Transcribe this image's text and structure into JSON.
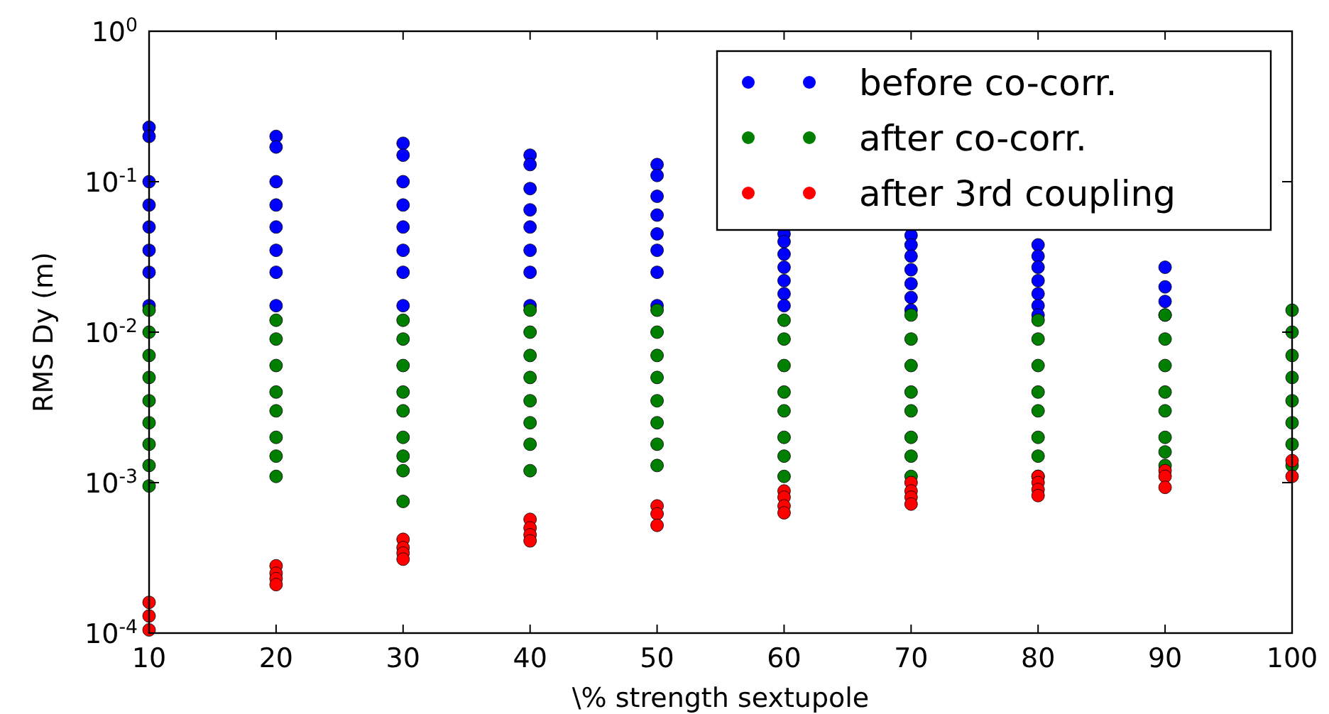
{
  "chart_data": {
    "type": "scatter",
    "xlabel": "\\% strength sextupole",
    "ylabel": "RMS Dy (m)",
    "log": "y",
    "grid": false,
    "legend": "top right",
    "marker": "circle",
    "xlim": [
      10,
      100
    ],
    "xticks": [
      10,
      20,
      30,
      40,
      50,
      60,
      70,
      80,
      90,
      100
    ],
    "ylim": [
      0.0001,
      1
    ],
    "yticks": [
      {
        "value": 0.0001,
        "label": "10$^{-4}$"
      },
      {
        "value": 0.001,
        "label": "10$^{-3}$"
      },
      {
        "value": 0.01,
        "label": "10$^{-2}$"
      },
      {
        "value": 0.1,
        "label": "10$^{-1}$"
      },
      {
        "value": 1,
        "label": "10$^{0}$"
      }
    ],
    "series": [
      {
        "name": "before co-corr.",
        "color": "#0000ff",
        "x": [
          10,
          10,
          10,
          10,
          10,
          10,
          10,
          10,
          20,
          20,
          20,
          20,
          20,
          20,
          20,
          20,
          30,
          30,
          30,
          30,
          30,
          30,
          30,
          30,
          40,
          40,
          40,
          40,
          40,
          40,
          40,
          40,
          50,
          50,
          50,
          50,
          50,
          50,
          50,
          50,
          60,
          60,
          60,
          60,
          60,
          60,
          60,
          70,
          70,
          70,
          70,
          70,
          70,
          70,
          80,
          80,
          80,
          80,
          80,
          80,
          80,
          90,
          90,
          90,
          90
        ],
        "values": [
          0.23,
          0.2,
          0.1,
          0.07,
          0.05,
          0.035,
          0.025,
          0.015,
          0.2,
          0.17,
          0.1,
          0.07,
          0.05,
          0.035,
          0.025,
          0.015,
          0.18,
          0.15,
          0.1,
          0.07,
          0.05,
          0.035,
          0.025,
          0.015,
          0.15,
          0.13,
          0.09,
          0.065,
          0.05,
          0.035,
          0.025,
          0.015,
          0.13,
          0.11,
          0.08,
          0.06,
          0.045,
          0.035,
          0.025,
          0.015,
          0.045,
          0.04,
          0.033,
          0.027,
          0.022,
          0.018,
          0.015,
          0.044,
          0.038,
          0.032,
          0.026,
          0.021,
          0.017,
          0.014,
          0.038,
          0.032,
          0.027,
          0.022,
          0.018,
          0.015,
          0.013,
          0.027,
          0.02,
          0.016,
          0.013
        ]
      },
      {
        "name": "after co-corr.",
        "color": "#007f00",
        "x": [
          10,
          10,
          10,
          10,
          10,
          10,
          10,
          10,
          10,
          20,
          20,
          20,
          20,
          20,
          20,
          20,
          20,
          30,
          30,
          30,
          30,
          30,
          30,
          30,
          30,
          30,
          40,
          40,
          40,
          40,
          40,
          40,
          40,
          40,
          50,
          50,
          50,
          50,
          50,
          50,
          50,
          50,
          60,
          60,
          60,
          60,
          60,
          60,
          60,
          60,
          70,
          70,
          70,
          70,
          70,
          70,
          70,
          70,
          80,
          80,
          80,
          80,
          80,
          80,
          80,
          80,
          90,
          90,
          90,
          90,
          90,
          90,
          90,
          90,
          100,
          100,
          100,
          100,
          100,
          100,
          100,
          100
        ],
        "values": [
          0.014,
          0.01,
          0.007,
          0.005,
          0.0035,
          0.0025,
          0.0018,
          0.0013,
          0.00095,
          0.012,
          0.009,
          0.006,
          0.004,
          0.003,
          0.002,
          0.0015,
          0.0011,
          0.012,
          0.009,
          0.006,
          0.004,
          0.003,
          0.002,
          0.0015,
          0.0012,
          0.00075,
          0.014,
          0.01,
          0.007,
          0.005,
          0.0035,
          0.0025,
          0.0018,
          0.0012,
          0.014,
          0.01,
          0.007,
          0.005,
          0.0035,
          0.0025,
          0.0018,
          0.0013,
          0.012,
          0.009,
          0.006,
          0.004,
          0.003,
          0.002,
          0.0015,
          0.0011,
          0.013,
          0.009,
          0.006,
          0.004,
          0.003,
          0.002,
          0.0015,
          0.0011,
          0.012,
          0.009,
          0.006,
          0.004,
          0.003,
          0.002,
          0.0015,
          0.0011,
          0.013,
          0.009,
          0.006,
          0.004,
          0.003,
          0.002,
          0.0016,
          0.0013,
          0.014,
          0.01,
          0.007,
          0.005,
          0.0035,
          0.0025,
          0.0018,
          0.0013
        ]
      },
      {
        "name": "after 3rd coupling",
        "color": "#ff0000",
        "x": [
          10,
          10,
          10,
          20,
          20,
          20,
          20,
          30,
          30,
          30,
          30,
          40,
          40,
          40,
          40,
          50,
          50,
          50,
          60,
          60,
          60,
          60,
          70,
          70,
          70,
          70,
          80,
          80,
          80,
          80,
          90,
          90,
          90,
          100,
          100
        ],
        "values": [
          0.00016,
          0.00013,
          0.000105,
          0.00028,
          0.00025,
          0.00023,
          0.00021,
          0.00042,
          0.00037,
          0.00034,
          0.00031,
          0.00057,
          0.0005,
          0.00045,
          0.00041,
          0.0007,
          0.00062,
          0.00052,
          0.00088,
          0.0008,
          0.0007,
          0.00063,
          0.001,
          0.00088,
          0.0008,
          0.00072,
          0.0011,
          0.001,
          0.0009,
          0.00082,
          0.0012,
          0.0011,
          0.00093,
          0.0014,
          0.0011
        ]
      }
    ]
  }
}
